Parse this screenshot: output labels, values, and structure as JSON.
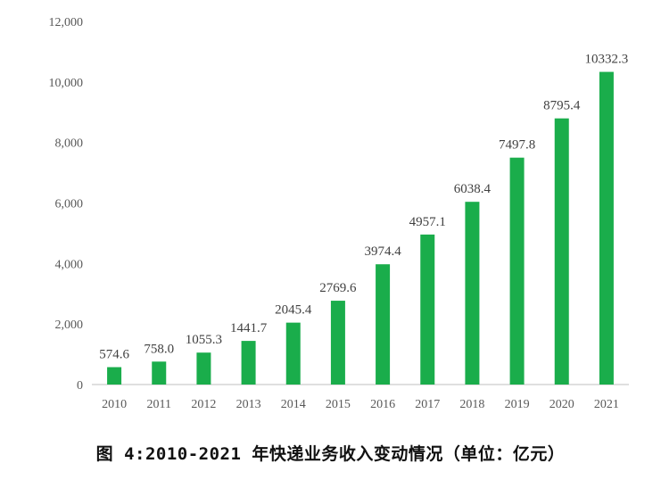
{
  "caption": "图 4:2010-2021 年快递业务收入变动情况（单位：亿元）",
  "colors": {
    "bar": "#1aad4b",
    "axis": "#bfbfbf",
    "text": "#595959"
  },
  "chart_data": {
    "type": "bar",
    "categories": [
      "2010",
      "2011",
      "2012",
      "2013",
      "2014",
      "2015",
      "2016",
      "2017",
      "2018",
      "2019",
      "2020",
      "2021"
    ],
    "values": [
      574.6,
      758.0,
      1055.3,
      1441.7,
      2045.4,
      2769.6,
      3974.4,
      4957.1,
      6038.4,
      7497.8,
      8795.4,
      10332.3
    ],
    "value_labels": [
      "574.6",
      "758.0",
      "1055.3",
      "1441.7",
      "2045.4",
      "2769.6",
      "3974.4",
      "4957.1",
      "6038.4",
      "7497.8",
      "8795.4",
      "10332.3"
    ],
    "yticks": [
      "0",
      "2,000",
      "4,000",
      "6,000",
      "8,000",
      "10,000",
      "12,000"
    ],
    "ylim": [
      0,
      12000
    ],
    "grid": false,
    "legend": "none"
  }
}
